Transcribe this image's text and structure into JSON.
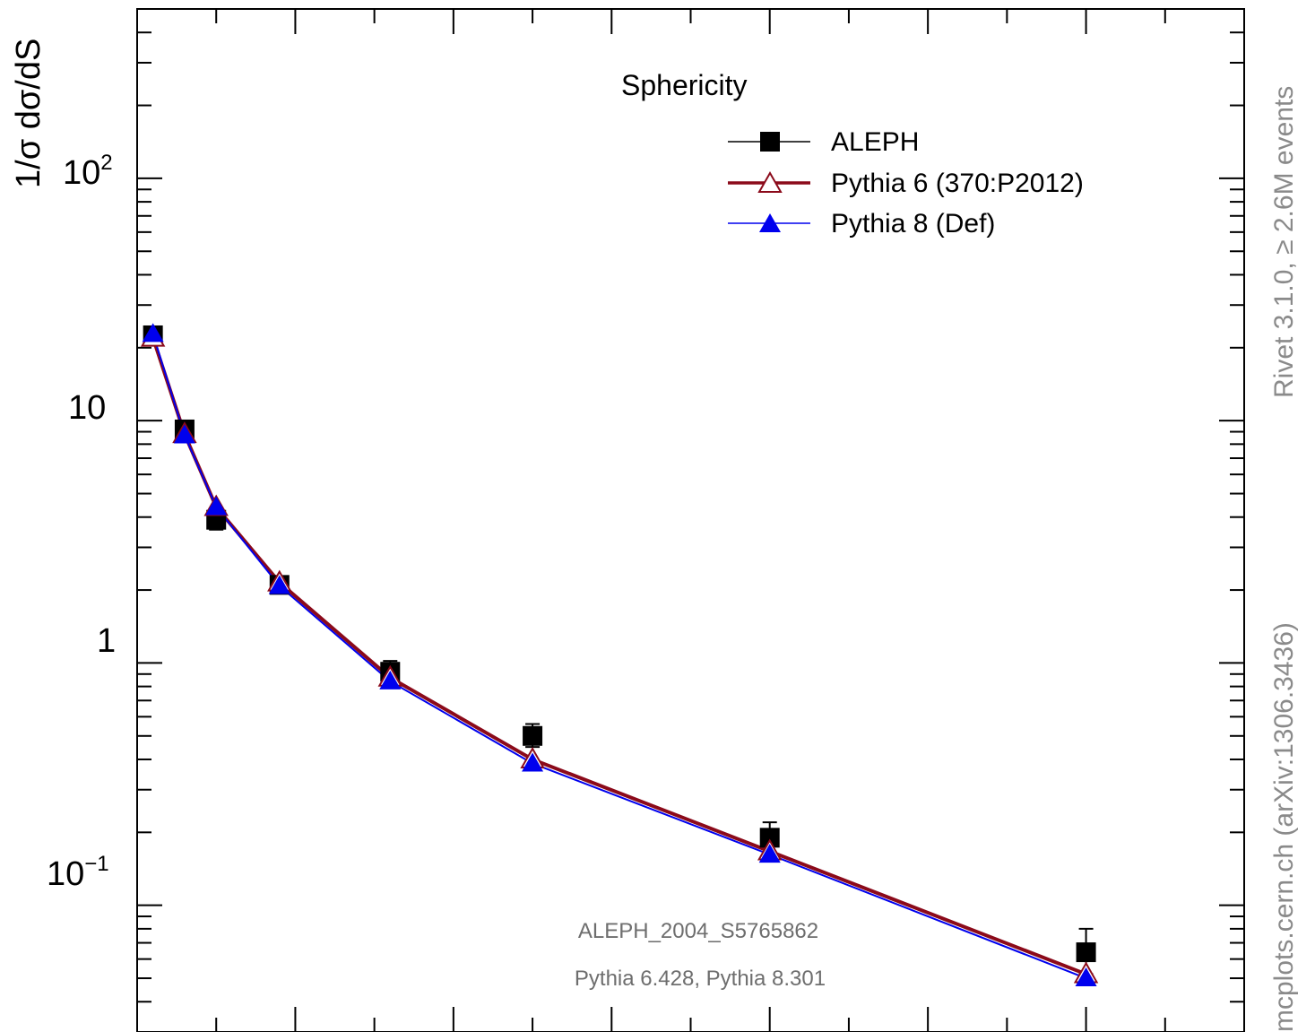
{
  "chart_data": {
    "type": "line",
    "title": "Sphericity",
    "ylabel": "1/σ  dσ/dS",
    "yscale": "log",
    "ylim": [
      0.03,
      500
    ],
    "y_ticks": [
      {
        "value": 100,
        "base": "10",
        "exp": "2"
      },
      {
        "value": 10,
        "base": "10",
        "exp": ""
      },
      {
        "value": 1,
        "base": "1",
        "exp": ""
      },
      {
        "value": 0.1,
        "base": "10",
        "exp": "−1"
      }
    ],
    "xlim": [
      0,
      0.7
    ],
    "grid": false,
    "legend_position": "top-right",
    "x": [
      0.01,
      0.03,
      0.05,
      0.09,
      0.16,
      0.25,
      0.4,
      0.6
    ],
    "series": [
      {
        "name": "ALEPH",
        "color": "#000000",
        "marker": "square",
        "values": [
          22.5,
          9.2,
          3.9,
          2.1,
          0.92,
          0.5,
          0.19,
          0.064
        ],
        "err_up": [
          1.0,
          0.4,
          0.4,
          0.15,
          0.1,
          0.06,
          0.03,
          0.016
        ],
        "err_down": [
          1.0,
          0.4,
          0.35,
          0.15,
          0.09,
          0.05,
          0.025,
          0.012
        ]
      },
      {
        "name": "Pythia 6 (370:P2012)",
        "color": "#8b0a1a",
        "marker": "open-triangle",
        "values": [
          22.0,
          8.8,
          4.4,
          2.15,
          0.87,
          0.4,
          0.167,
          0.052
        ]
      },
      {
        "name": "Pythia 8 (Def)",
        "color": "#0000ee",
        "marker": "filled-triangle",
        "values": [
          22.8,
          8.7,
          4.4,
          2.08,
          0.84,
          0.385,
          0.162,
          0.05
        ]
      }
    ]
  },
  "side_text_upper": "Rivet 3.1.0,  ≥ 2.6M events",
  "side_text_lower": "mcplots.cern.ch (arXiv:1306.3436)",
  "info_line1": "ALEPH_2004_S5765862",
  "info_line2": "Pythia 6.428, Pythia 8.301"
}
